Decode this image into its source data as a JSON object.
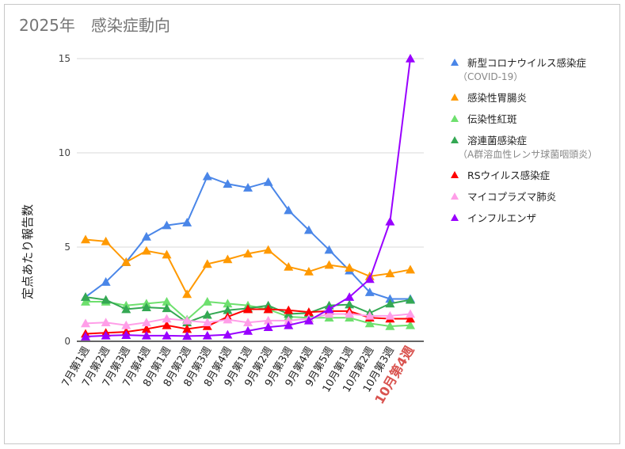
{
  "chart_data": {
    "type": "line",
    "title": "2025年　感染症動向",
    "xlabel": "",
    "ylabel": "定点あたり報告数",
    "ylim": [
      0,
      15
    ],
    "yticks": [
      0,
      5,
      10,
      15
    ],
    "grid": true,
    "legend_position": "right",
    "marker": "triangle",
    "categories": [
      "7月第1週",
      "7月第2週",
      "7月第3週",
      "7月第4週",
      "8月第1週",
      "8月第2週",
      "8月第3週",
      "8月第4週",
      "9月第1週",
      "9月第2週",
      "9月第3週",
      "9月第4週",
      "9月第5週",
      "10月第1週",
      "10月第2週",
      "10月第3週",
      "10月第4週"
    ],
    "highlight_category": "10月第4週",
    "highlight_color": "#d9534f",
    "series": [
      {
        "name": "新型コロナウイルス感染症",
        "subname": "（COVID-19）",
        "color": "#4a86e8",
        "values": [
          2.35,
          3.15,
          4.2,
          5.55,
          6.15,
          6.3,
          8.75,
          8.35,
          8.15,
          8.45,
          6.95,
          5.9,
          4.85,
          3.75,
          2.6,
          2.25,
          2.25
        ]
      },
      {
        "name": "感染性胃腸炎",
        "color": "#ff9900",
        "values": [
          5.4,
          5.3,
          4.2,
          4.8,
          4.6,
          2.5,
          4.1,
          4.35,
          4.65,
          4.85,
          3.95,
          3.7,
          4.05,
          3.9,
          3.45,
          3.6,
          3.8
        ]
      },
      {
        "name": "伝染性紅斑",
        "color": "#6ee06e",
        "values": [
          2.1,
          2.1,
          1.9,
          2.0,
          2.1,
          1.15,
          2.1,
          2.0,
          1.9,
          1.7,
          1.3,
          1.25,
          1.25,
          1.25,
          0.95,
          0.8,
          0.85
        ]
      },
      {
        "name": "溶連菌感染症",
        "subname": "（A群溶血性レンサ球菌咽頭炎）",
        "color": "#34a853",
        "values": [
          2.35,
          2.2,
          1.7,
          1.8,
          1.75,
          1.0,
          1.4,
          1.65,
          1.75,
          1.9,
          1.45,
          1.5,
          1.9,
          1.95,
          1.5,
          2.0,
          2.2
        ]
      },
      {
        "name": "RSウイルス感染症",
        "color": "#ff0000",
        "values": [
          0.4,
          0.45,
          0.5,
          0.65,
          0.85,
          0.65,
          0.8,
          1.3,
          1.7,
          1.7,
          1.65,
          1.55,
          1.6,
          1.6,
          1.25,
          1.2,
          1.2
        ]
      },
      {
        "name": "マイコプラズマ肺炎",
        "color": "#ff9ee8",
        "values": [
          0.95,
          1.0,
          0.85,
          1.0,
          1.2,
          1.1,
          1.0,
          1.15,
          1.0,
          1.1,
          1.1,
          1.2,
          1.45,
          1.45,
          1.35,
          1.35,
          1.45
        ]
      },
      {
        "name": "インフルエンザ",
        "color": "#9900ff",
        "values": [
          0.25,
          0.3,
          0.33,
          0.3,
          0.3,
          0.28,
          0.3,
          0.35,
          0.55,
          0.75,
          0.85,
          1.1,
          1.7,
          2.35,
          3.3,
          6.35,
          15
        ]
      }
    ]
  }
}
